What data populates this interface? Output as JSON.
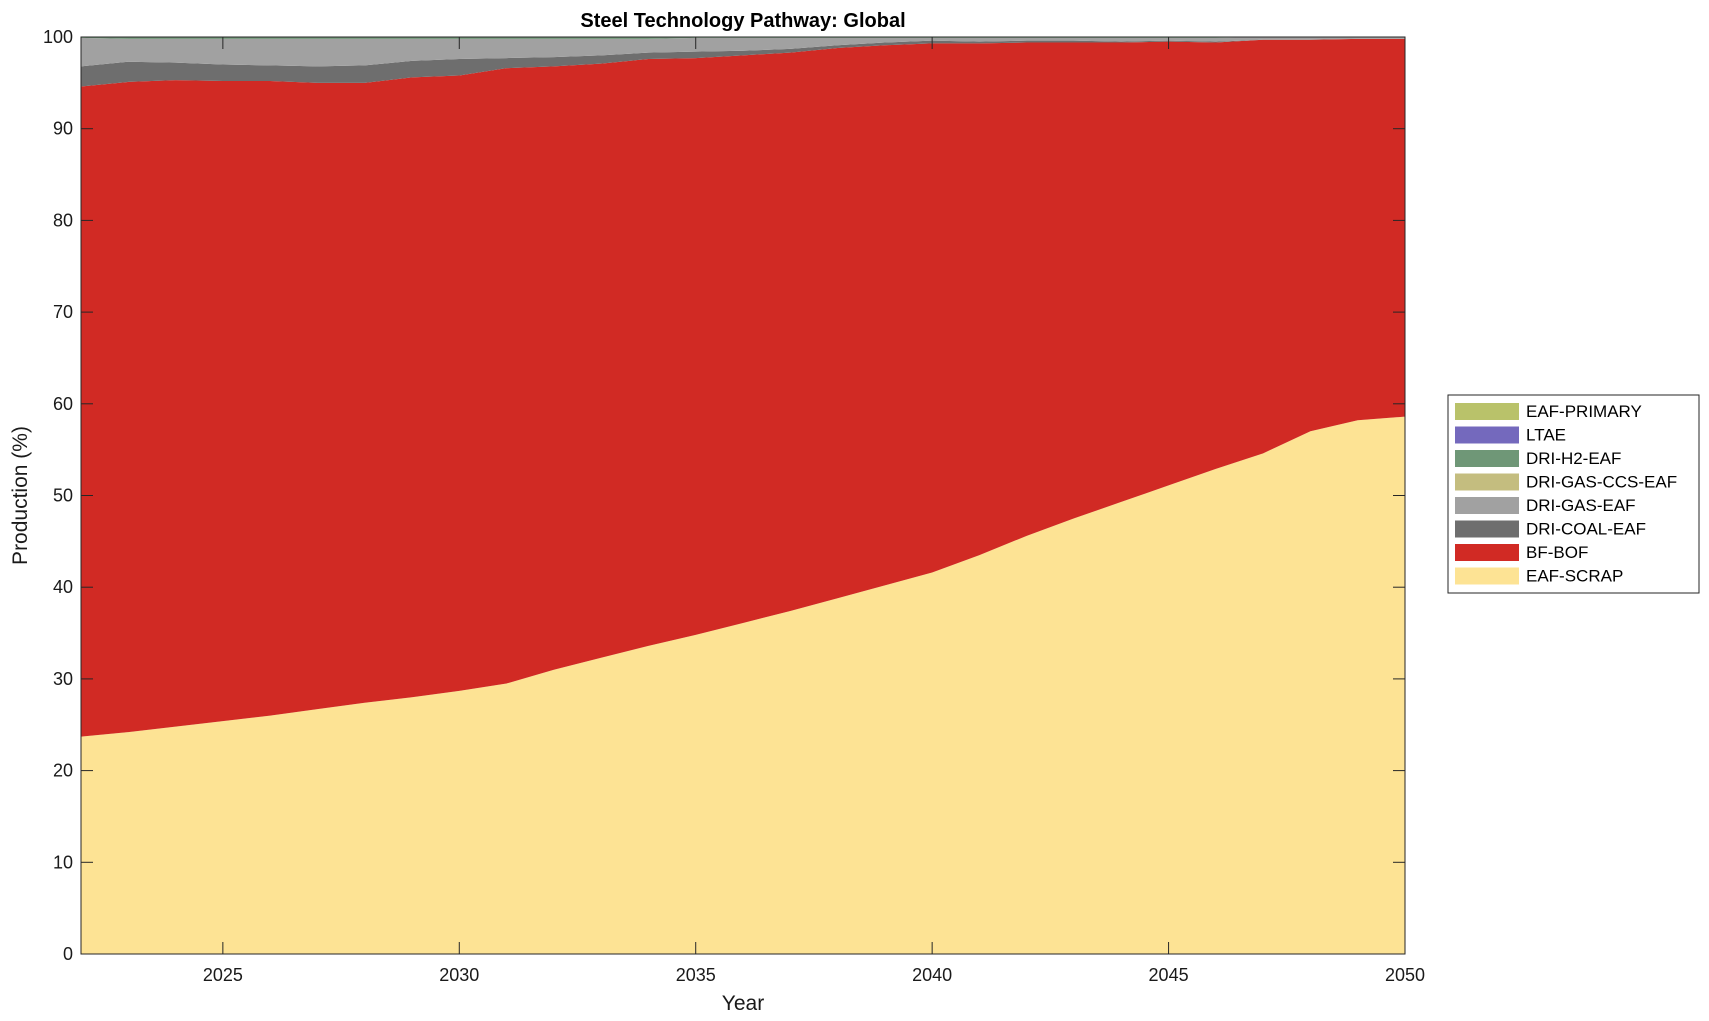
{
  "chart_data": {
    "type": "area",
    "stacked": true,
    "title": "Steel Technology Pathway: Global",
    "xlabel": "Year",
    "ylabel": "Production (%)",
    "xlim": [
      2022,
      2050
    ],
    "ylim": [
      0,
      100
    ],
    "xticks": [
      2025,
      2030,
      2035,
      2040,
      2045,
      2050
    ],
    "yticks": [
      0,
      10,
      20,
      30,
      40,
      50,
      60,
      70,
      80,
      90,
      100
    ],
    "grid": false,
    "legend_position": "right",
    "x": [
      2022,
      2023,
      2024,
      2025,
      2026,
      2027,
      2028,
      2029,
      2030,
      2031,
      2032,
      2033,
      2034,
      2035,
      2036,
      2037,
      2038,
      2039,
      2040,
      2041,
      2042,
      2043,
      2044,
      2045,
      2046,
      2047,
      2048,
      2049,
      2050
    ],
    "series": [
      {
        "name": "EAF-SCRAP",
        "color": "#fde394",
        "values": [
          23.7,
          24.2,
          24.8,
          25.4,
          26.0,
          26.7,
          27.4,
          28.0,
          28.7,
          29.5,
          31.0,
          32.3,
          33.6,
          34.8,
          36.1,
          37.4,
          38.8,
          40.2,
          41.6,
          43.5,
          45.6,
          47.5,
          49.3,
          51.1,
          52.9,
          54.6,
          57.0,
          58.2,
          58.6
        ]
      },
      {
        "name": "BF-BOF",
        "color": "#d12a24",
        "values": [
          70.9,
          70.9,
          70.5,
          69.8,
          69.2,
          68.3,
          67.6,
          67.6,
          67.1,
          67.1,
          65.8,
          64.8,
          64.0,
          62.9,
          61.9,
          60.9,
          60.0,
          58.9,
          57.7,
          55.8,
          53.8,
          51.9,
          50.1,
          48.4,
          46.5,
          45.1,
          42.7,
          41.6,
          41.2
        ]
      },
      {
        "name": "DRI-COAL-EAF",
        "color": "#6e6e6e",
        "values": [
          2.2,
          2.2,
          1.9,
          1.8,
          1.7,
          1.8,
          1.9,
          1.8,
          1.8,
          1.1,
          1.0,
          0.9,
          0.7,
          0.7,
          0.5,
          0.4,
          0.3,
          0.3,
          0.3,
          0.2,
          0.2,
          0.2,
          0.1,
          0.1,
          0.1,
          0.0,
          0.0,
          0.0,
          0.0
        ]
      },
      {
        "name": "DRI-GAS-EAF",
        "color": "#a1a1a1",
        "values": [
          3.1,
          2.5,
          2.6,
          2.8,
          2.9,
          3.0,
          2.9,
          2.4,
          2.2,
          2.1,
          2.0,
          1.8,
          1.5,
          1.5,
          1.4,
          1.2,
          0.8,
          0.5,
          0.3,
          0.4,
          0.3,
          0.3,
          0.4,
          0.3,
          0.4,
          0.3,
          0.3,
          0.2,
          0.2
        ]
      },
      {
        "name": "DRI-GAS-CCS-EAF",
        "color": "#c4bd7f",
        "values": [
          0.0,
          0.0,
          0.0,
          0.0,
          0.0,
          0.0,
          0.0,
          0.0,
          0.0,
          0.0,
          0.0,
          0.0,
          0.0,
          0.0,
          0.0,
          0.0,
          0.0,
          0.0,
          0.0,
          0.0,
          0.0,
          0.0,
          0.0,
          0.0,
          0.0,
          0.0,
          0.0,
          0.0,
          0.0
        ]
      },
      {
        "name": "DRI-H2-EAF",
        "color": "#6f9777",
        "values": [
          0.1,
          0.2,
          0.2,
          0.2,
          0.2,
          0.2,
          0.2,
          0.2,
          0.2,
          0.2,
          0.2,
          0.2,
          0.2,
          0.1,
          0.1,
          0.1,
          0.1,
          0.1,
          0.1,
          0.1,
          0.1,
          0.1,
          0.1,
          0.1,
          0.1,
          0.0,
          0.0,
          0.0,
          0.0
        ]
      },
      {
        "name": "LTAE",
        "color": "#7469bd",
        "values": [
          0.0,
          0.0,
          0.0,
          0.0,
          0.0,
          0.0,
          0.0,
          0.0,
          0.0,
          0.0,
          0.0,
          0.0,
          0.0,
          0.0,
          0.0,
          0.0,
          0.0,
          0.0,
          0.0,
          0.0,
          0.0,
          0.0,
          0.0,
          0.0,
          0.0,
          0.0,
          0.0,
          0.0,
          0.0
        ]
      },
      {
        "name": "EAF-PRIMARY",
        "color": "#b9c26a",
        "values": [
          0.0,
          0.0,
          0.0,
          0.0,
          0.0,
          0.0,
          0.0,
          0.0,
          0.0,
          0.0,
          0.0,
          0.0,
          0.0,
          0.0,
          0.0,
          0.0,
          0.0,
          0.0,
          0.0,
          0.0,
          0.0,
          0.0,
          0.0,
          0.0,
          0.0,
          0.0,
          0.0,
          0.0,
          0.0
        ]
      }
    ],
    "legend_order": [
      "EAF-PRIMARY",
      "LTAE",
      "DRI-H2-EAF",
      "DRI-GAS-CCS-EAF",
      "DRI-GAS-EAF",
      "DRI-COAL-EAF",
      "BF-BOF",
      "EAF-SCRAP"
    ]
  }
}
